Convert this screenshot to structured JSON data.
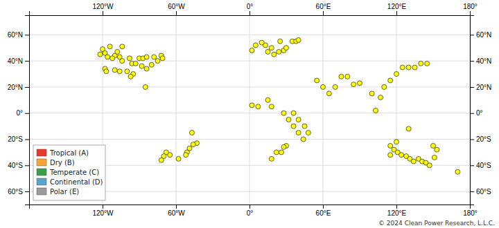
{
  "chart_data": {
    "type": "scatter",
    "x": [
      -120,
      -114,
      -110,
      -108,
      -104,
      -122,
      -118,
      -116,
      -112,
      -106,
      -118,
      -104,
      -98,
      -96,
      -90,
      -87,
      -84,
      -78,
      -72,
      -71,
      -75,
      -80,
      -84,
      -88,
      -93,
      -95,
      -97,
      -100,
      -106,
      -110,
      -117,
      -85,
      -47,
      -43,
      -49,
      -51,
      -58,
      -65,
      -68,
      -70,
      -72,
      -46,
      -52,
      2,
      13,
      10,
      18,
      25,
      5,
      15,
      20,
      24,
      28,
      30,
      35,
      38,
      40,
      2,
      7,
      15,
      18,
      28,
      32,
      36,
      40,
      44,
      36,
      40,
      45,
      48,
      30,
      26,
      22,
      18,
      28,
      55,
      60,
      65,
      70,
      75,
      80,
      85,
      90,
      100,
      103,
      107,
      110,
      115,
      120,
      125,
      130,
      135,
      140,
      145,
      115,
      118,
      121,
      124,
      128,
      131,
      134,
      138,
      141,
      144,
      147,
      151,
      153,
      115,
      120,
      130,
      150,
      170
    ],
    "values": [
      49,
      51,
      44,
      47,
      51,
      45,
      46,
      43,
      42,
      43,
      34,
      40,
      42,
      38,
      42,
      42,
      43,
      43,
      44,
      42,
      40,
      37,
      34,
      36,
      38,
      30,
      28,
      32,
      32,
      33,
      32,
      20,
      -15,
      -23,
      -27,
      -30,
      -35,
      -32,
      -30,
      -33,
      -36,
      -24,
      -32,
      48,
      52,
      54,
      50,
      55,
      52,
      47,
      45,
      47,
      48,
      50,
      55,
      55,
      56,
      6,
      5,
      10,
      5,
      0,
      -5,
      -10,
      -15,
      -20,
      0,
      -5,
      -10,
      -15,
      -25,
      -30,
      -30,
      -35,
      -26,
      25,
      20,
      15,
      20,
      28,
      28,
      22,
      23,
      15,
      2,
      12,
      20,
      25,
      30,
      35,
      35,
      35,
      38,
      38,
      -25,
      -28,
      -30,
      -32,
      -33,
      -35,
      -37,
      -35,
      -37,
      -38,
      -40,
      -34,
      -28,
      -32,
      -22,
      -12,
      -25,
      -45
    ],
    "color": "yellow",
    "marker": "circle",
    "xlim": [
      -180,
      180
    ],
    "ylim": [
      -70,
      75
    ],
    "xticks": [
      {
        "value": -120,
        "label": "120°W"
      },
      {
        "value": -60,
        "label": "60°W"
      },
      {
        "value": 0,
        "label": "0°"
      },
      {
        "value": 60,
        "label": "60°E"
      },
      {
        "value": 120,
        "label": "120°E"
      },
      {
        "value": 180,
        "label": "180°"
      }
    ],
    "yticks": [
      {
        "value": -60,
        "label": "60°S"
      },
      {
        "value": -40,
        "label": "40°S"
      },
      {
        "value": -20,
        "label": "20°S"
      },
      {
        "value": 0,
        "label": "0°"
      },
      {
        "value": 20,
        "label": "20°N"
      },
      {
        "value": 40,
        "label": "40°N"
      },
      {
        "value": 60,
        "label": "60°N"
      }
    ],
    "grid": true,
    "legend": "lower left",
    "legend_entries": [
      {
        "label": "Tropical (A)",
        "color": "#E8392A"
      },
      {
        "label": "Dry (B)",
        "color": "#F5A633"
      },
      {
        "label": "Temperate (C)",
        "color": "#3A9E4A"
      },
      {
        "label": "Continental (D)",
        "color": "#5BA4CF"
      },
      {
        "label": "Polar (E)",
        "color": "#9B9B9B"
      }
    ],
    "annotations": [
      "© 2024 Clean Power Research, L.L.C."
    ]
  }
}
